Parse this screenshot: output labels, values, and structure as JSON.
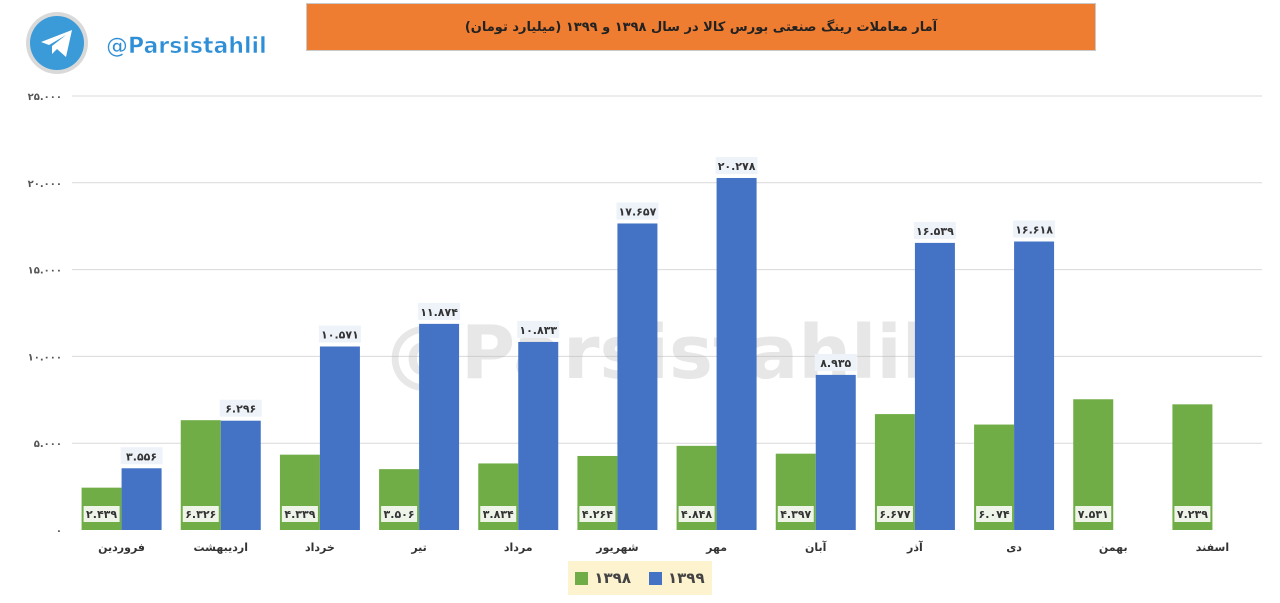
{
  "branding": {
    "handle": "@Parsistahlil",
    "logo_icon": "telegram-plane-icon",
    "watermark": "@Parsistahlil"
  },
  "colors": {
    "series_1398": "#70ad47",
    "series_1399": "#4472c4",
    "title_bg": "#ef7d31",
    "grid": "#d9d9d9"
  },
  "chart_data": {
    "type": "bar",
    "title": "آمار معاملات رینگ صنعتی بورس کالا در سال ۱۳۹۸ و ۱۳۹۹ (میلیارد تومان)",
    "xlabel": "",
    "ylabel": "",
    "ylim": [
      0,
      25000
    ],
    "yticks": [
      "۰",
      "۵.۰۰۰",
      "۱۰.۰۰۰",
      "۱۵.۰۰۰",
      "۲۰.۰۰۰",
      "۲۵.۰۰۰"
    ],
    "grid": true,
    "legend_position": "bottom",
    "categories": [
      "فروردین",
      "اردیبهشت",
      "خرداد",
      "تیر",
      "مرداد",
      "شهریور",
      "مهر",
      "آبان",
      "آذر",
      "دی",
      "بهمن",
      "اسفند"
    ],
    "series": [
      {
        "name": "۱۳۹۸",
        "values": [
          2439,
          6326,
          4339,
          3506,
          3834,
          4264,
          4848,
          4397,
          6677,
          6074,
          7531,
          7239
        ],
        "labels": [
          "۲.۴۳۹",
          "۶.۳۲۶",
          "۴.۳۳۹",
          "۳.۵۰۶",
          "۳.۸۳۴",
          "۴.۲۶۴",
          "۴.۸۴۸",
          "۴.۳۹۷",
          "۶.۶۷۷",
          "۶.۰۷۴",
          "۷.۵۳۱",
          "۷.۲۳۹"
        ]
      },
      {
        "name": "۱۳۹۹",
        "values": [
          3556,
          6296,
          10571,
          11874,
          10833,
          17657,
          20278,
          8935,
          16539,
          16618,
          null,
          null
        ],
        "labels": [
          "۳.۵۵۶",
          "۶.۲۹۶",
          "۱۰.۵۷۱",
          "۱۱.۸۷۴",
          "۱۰.۸۳۳",
          "۱۷.۶۵۷",
          "۲۰.۲۷۸",
          "۸.۹۳۵",
          "۱۶.۵۳۹",
          "۱۶.۶۱۸",
          "",
          ""
        ]
      }
    ]
  }
}
